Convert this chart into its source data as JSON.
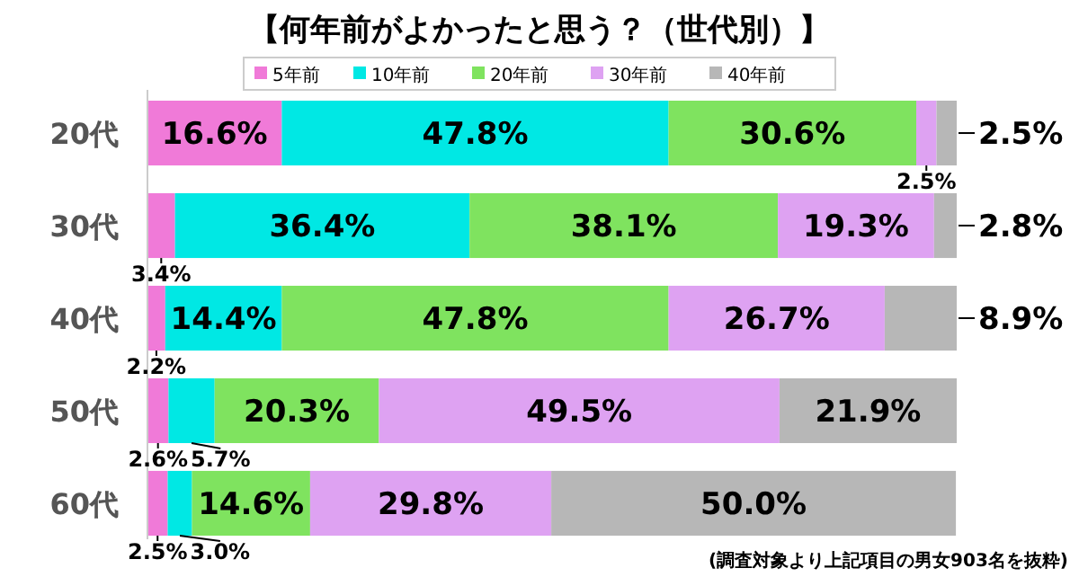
{
  "chart_data": {
    "type": "bar",
    "orientation": "horizontal",
    "stacked": true,
    "title": "【何年前がよかったと思う？（世代別）】",
    "categories": [
      "20代",
      "30代",
      "40代",
      "50代",
      "60代"
    ],
    "series": [
      {
        "name": "5年前",
        "color": "#f07ad8",
        "values": [
          16.6,
          3.4,
          2.2,
          2.6,
          2.5
        ],
        "value_labels": [
          "16.6%",
          "3.4%",
          "2.2%",
          "2.6%",
          "2.5%"
        ]
      },
      {
        "name": "10年前",
        "color": "#00e8e4",
        "values": [
          47.8,
          36.4,
          14.4,
          5.7,
          3.0
        ],
        "value_labels": [
          "47.8%",
          "36.4%",
          "14.4%",
          "5.7%",
          "3.0%"
        ]
      },
      {
        "name": "20年前",
        "color": "#7fe35f",
        "values": [
          30.6,
          38.1,
          47.8,
          20.3,
          14.6
        ],
        "value_labels": [
          "30.6%",
          "38.1%",
          "47.8%",
          "20.3%",
          "14.6%"
        ]
      },
      {
        "name": "30年前",
        "color": "#dea2f2",
        "values": [
          2.5,
          19.3,
          26.7,
          49.5,
          29.8
        ],
        "value_labels": [
          "2.5%",
          "19.3%",
          "26.7%",
          "49.5%",
          "29.8%"
        ]
      },
      {
        "name": "40年前",
        "color": "#b7b7b7",
        "values": [
          2.5,
          2.8,
          8.9,
          21.9,
          50.0
        ],
        "value_labels": [
          "2.5%",
          "2.8%",
          "8.9%",
          "21.9%",
          "50.0%"
        ]
      }
    ],
    "legend": "top",
    "annotations": [
      "(調査対象より上記項目の男女903名を抜粋)"
    ]
  }
}
